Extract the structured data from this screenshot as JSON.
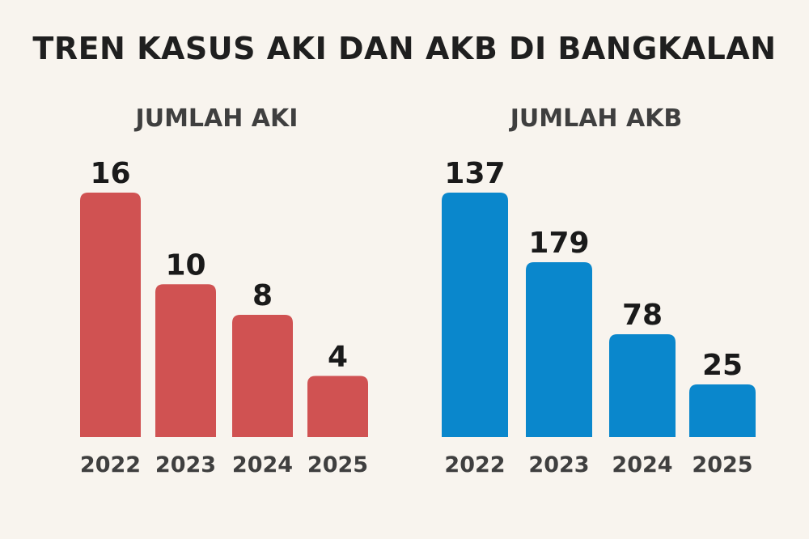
{
  "title": "TREN KASUS AKI DAN AKB DI BANGKALAN",
  "chart_data": [
    {
      "type": "bar",
      "title": "JUMLAH AKI",
      "categories": [
        "2022",
        "2023",
        "2024",
        "2025"
      ],
      "values": [
        16,
        10,
        8,
        4
      ],
      "data_labels": [
        "16",
        "10",
        "8",
        "4"
      ],
      "color": "#d05252",
      "xlabel": "",
      "ylabel": "",
      "grid": false,
      "legend": "none"
    },
    {
      "type": "bar",
      "title": "JUMLAH AKB",
      "categories": [
        "2022",
        "2023",
        "2024",
        "2025"
      ],
      "values": [
        137,
        179,
        78,
        25
      ],
      "data_labels": [
        "137",
        "179",
        "78",
        "25"
      ],
      "color": "#0a87cc",
      "xlabel": "",
      "ylabel": "",
      "grid": false,
      "legend": "none"
    }
  ]
}
